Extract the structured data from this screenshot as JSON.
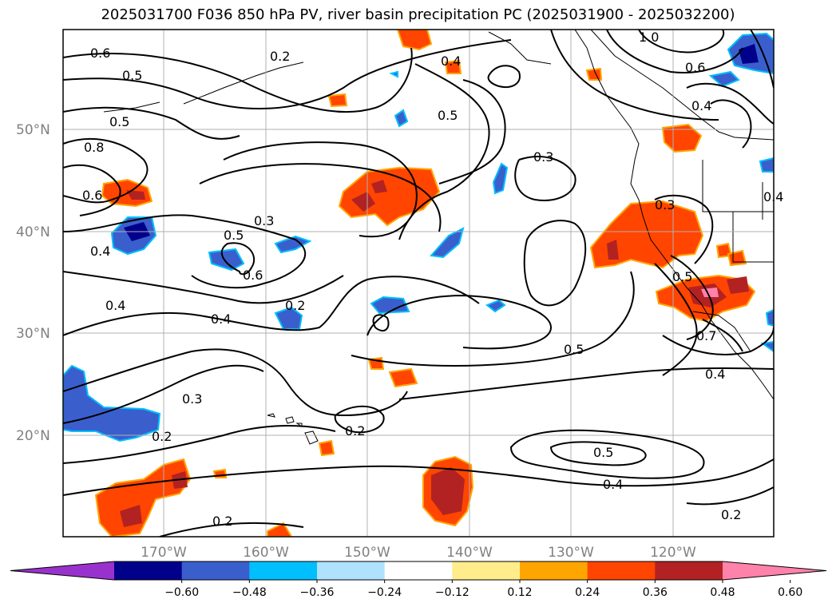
{
  "title": "2025031700 F036 850 hPa PV, river basin precipitation PC (2025031900 - 2025032200)",
  "lat_ticks": [
    "50°N",
    "40°N",
    "30°N",
    "20°N"
  ],
  "lon_ticks": [
    "170°W",
    "160°W",
    "150°W",
    "140°W",
    "130°W",
    "120°W"
  ],
  "contour_labels": [
    "0.6",
    "0.5",
    "0.5",
    "0.8",
    "0.6",
    "0.4",
    "0.4",
    "0.3",
    "0.5",
    "0.6",
    "0.2",
    "0.4",
    "0.3",
    "0.2",
    "0.2",
    "0.2",
    "0.5",
    "0.4",
    "0.5",
    "0.3",
    "0.4",
    "0.5",
    "0.4",
    "0.2",
    "1.0",
    "0.6",
    "0.4",
    "0.3",
    "0.7",
    "0.5",
    "0.4",
    "0.2"
  ],
  "colorbar": {
    "colors": [
      "#9932cc",
      "#00008b",
      "#3a5fcd",
      "#00bfff",
      "#b0e2ff",
      "#ffffff",
      "#ffec8b",
      "#ffa500",
      "#ff4500",
      "#b22222",
      "#ff82ab"
    ],
    "labels": [
      "−0.60",
      "−0.48",
      "−0.36",
      "−0.24",
      "−0.12",
      "0.12",
      "0.24",
      "0.36",
      "0.48",
      "0.60"
    ]
  }
}
